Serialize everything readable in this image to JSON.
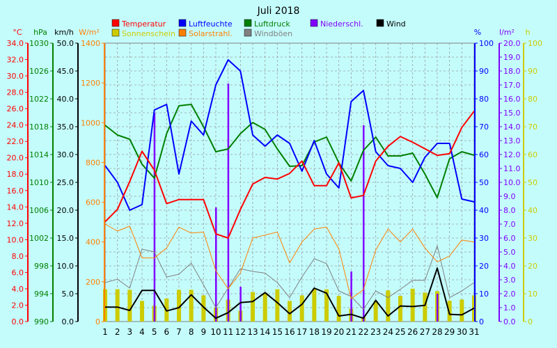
{
  "chart_data": {
    "type": "line",
    "title": "Juli 2018",
    "x": [
      1,
      2,
      3,
      4,
      5,
      6,
      7,
      8,
      9,
      10,
      11,
      12,
      13,
      14,
      15,
      16,
      17,
      18,
      19,
      20,
      21,
      22,
      23,
      24,
      25,
      26,
      27,
      28,
      29,
      30,
      31
    ],
    "unit_labels": {
      "temp": "°C",
      "pressure": "hPa",
      "wind": "km/h",
      "solar": "W/m²",
      "humidity": "%",
      "precip": "l/m²",
      "sunshine": "h"
    },
    "axes": {
      "temp": {
        "min": 0,
        "max": 34,
        "step": 2
      },
      "pressure": {
        "min": 990,
        "max": 1030,
        "step": 4
      },
      "wind": {
        "min": 0,
        "max": 50,
        "step": 5
      },
      "solar": {
        "min": 0,
        "max": 1400,
        "step": 200
      },
      "humidity": {
        "min": 0,
        "max": 100,
        "step": 10
      },
      "precip": {
        "min": 0,
        "max": 20,
        "step": 1
      },
      "sunshine": {
        "min": 0,
        "max": 100,
        "step": 10
      }
    },
    "legend": [
      {
        "key": "temperature",
        "label": "Temperatur",
        "color": "#ff0000"
      },
      {
        "key": "humidity",
        "label": "Luftfeuchte",
        "color": "#0000ff"
      },
      {
        "key": "pressure",
        "label": "Luftdruck",
        "color": "#008000"
      },
      {
        "key": "precipitation",
        "label": "Niederschl.",
        "color": "#8000ff"
      },
      {
        "key": "wind",
        "label": "Wind",
        "color": "#000000"
      },
      {
        "key": "sunshine",
        "label": "Sonnenschein",
        "color": "#cccc00"
      },
      {
        "key": "solar",
        "label": "Solarstrahl.",
        "color": "#ff8000"
      },
      {
        "key": "gusts",
        "label": "Windböen",
        "color": "#808080"
      }
    ],
    "series": {
      "temperature": [
        12.2,
        13.7,
        17.1,
        20.8,
        18.5,
        14.4,
        14.9,
        14.9,
        14.9,
        10.7,
        10.2,
        13.7,
        16.8,
        17.6,
        17.4,
        18.1,
        19.6,
        16.6,
        16.6,
        19.4,
        15.1,
        15.4,
        19.6,
        21.4,
        22.6,
        21.9,
        21.1,
        20.3,
        20.5,
        23.7,
        25.7
      ],
      "humidity": [
        56,
        50,
        40,
        42,
        76,
        78,
        53,
        72,
        67,
        85,
        94,
        90,
        67,
        63,
        67,
        64,
        54,
        65,
        53,
        48,
        79,
        83,
        61,
        56,
        55,
        50,
        59,
        64,
        64,
        44,
        43
      ],
      "pressure": [
        1018.2,
        1016.8,
        1016.2,
        1012.6,
        1010.6,
        1017.0,
        1021.0,
        1021.2,
        1018.0,
        1014.4,
        1014.8,
        1017.0,
        1018.6,
        1017.6,
        1014.8,
        1012.3,
        1012.4,
        1015.8,
        1016.5,
        1012.8,
        1010.2,
        1014.6,
        1016.5,
        1013.8,
        1013.8,
        1014.2,
        1011.2,
        1007.8,
        1013.4,
        1014.4,
        1013.9
      ],
      "wind": [
        2.6,
        2.6,
        2.0,
        5.6,
        5.6,
        1.9,
        2.5,
        4.8,
        2.6,
        0.6,
        1.6,
        3.4,
        3.6,
        5.2,
        3.4,
        1.4,
        3.1,
        6.0,
        5.1,
        1.0,
        1.3,
        0.6,
        3.8,
        1.0,
        2.8,
        2.7,
        2.9,
        9.6,
        1.3,
        1.2,
        2.4
      ],
      "solar": [
        490,
        455,
        480,
        320,
        320,
        370,
        475,
        445,
        450,
        255,
        165,
        245,
        420,
        435,
        450,
        295,
        400,
        465,
        475,
        365,
        115,
        160,
        360,
        465,
        400,
        465,
        370,
        300,
        330,
        410,
        400
      ],
      "gusts": [
        7.0,
        7.6,
        6.0,
        13.0,
        12.5,
        8.0,
        8.5,
        10.5,
        6.6,
        2.5,
        6.0,
        9.5,
        9.0,
        8.7,
        7.0,
        4.3,
        8.0,
        11.3,
        10.4,
        5.5,
        4.5,
        2.2,
        5.5,
        4.3,
        5.8,
        7.4,
        7.4,
        13.6,
        4.3,
        5.5,
        7.0
      ],
      "sunshine": [
        11.6,
        11.6,
        11.4,
        7.4,
        5.7,
        8.3,
        11.4,
        11.4,
        9.4,
        5.0,
        7.9,
        3.9,
        10.6,
        10.4,
        11.6,
        7.4,
        9.4,
        11.6,
        11.6,
        9.2,
        4.6,
        1.5,
        7.4,
        11.2,
        9.2,
        11.8,
        10.4,
        10.9,
        7.5,
        7.9,
        9.4
      ],
      "precipitation": [
        0,
        0,
        0,
        0,
        15.0,
        0,
        0,
        0,
        0,
        8.2,
        17.1,
        2.5,
        0,
        0,
        0,
        0,
        0,
        0,
        0,
        0,
        3.6,
        14.1,
        0,
        0,
        0,
        0,
        0,
        2.0,
        0,
        0,
        0
      ]
    },
    "grid": true
  }
}
